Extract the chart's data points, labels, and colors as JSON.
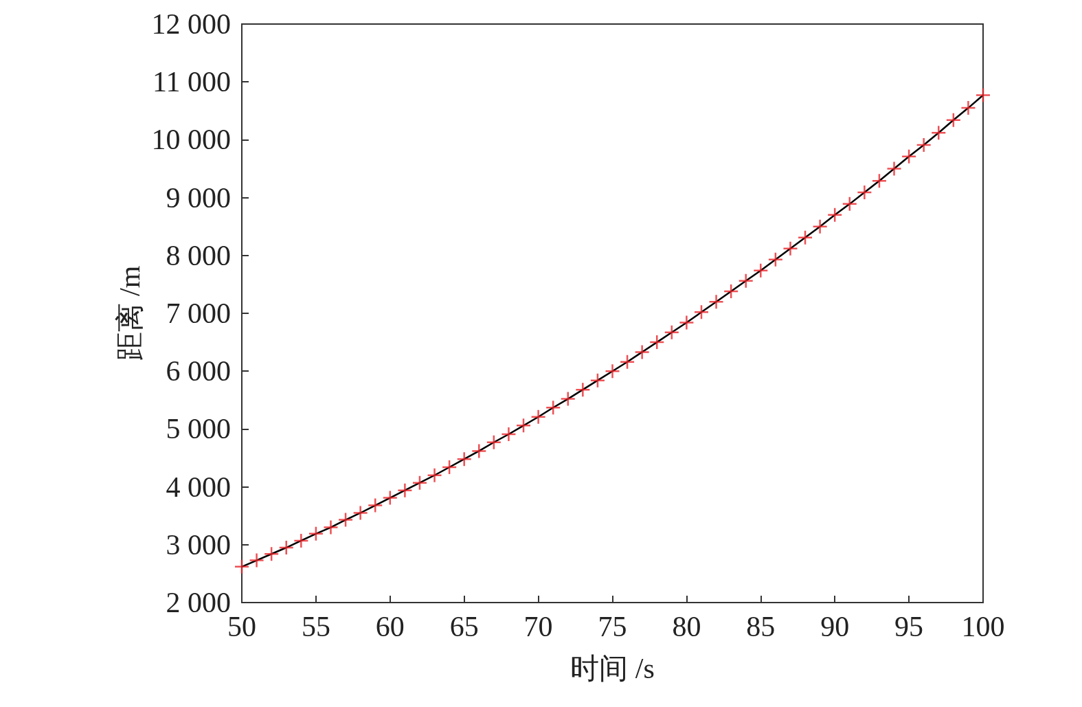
{
  "chart_data": {
    "type": "line",
    "xlabel": "时间 /s",
    "ylabel": "距离 /m",
    "x": [
      50,
      51,
      52,
      53,
      54,
      55,
      56,
      57,
      58,
      59,
      60,
      61,
      62,
      63,
      64,
      65,
      66,
      67,
      68,
      69,
      70,
      71,
      72,
      73,
      74,
      75,
      76,
      77,
      78,
      79,
      80,
      81,
      82,
      83,
      84,
      85,
      86,
      87,
      88,
      89,
      90,
      91,
      92,
      93,
      94,
      95,
      96,
      97,
      98,
      99,
      100
    ],
    "series": [
      {
        "color": "#000000",
        "marker": "none",
        "values": [
          2620,
          2730,
          2840,
          2950,
          3070,
          3190,
          3300,
          3430,
          3550,
          3680,
          3810,
          3940,
          4070,
          4200,
          4340,
          4480,
          4620,
          4770,
          4910,
          5060,
          5210,
          5370,
          5520,
          5680,
          5840,
          6000,
          6160,
          6330,
          6500,
          6670,
          6840,
          7020,
          7200,
          7380,
          7560,
          7740,
          7930,
          8120,
          8310,
          8500,
          8700,
          8890,
          9090,
          9290,
          9500,
          9710,
          9910,
          10120,
          10340,
          10550,
          10770
        ]
      },
      {
        "type": "scatter",
        "color": "#e8262b",
        "marker": "cross",
        "values": [
          2620,
          2730,
          2840,
          2950,
          3070,
          3190,
          3300,
          3430,
          3550,
          3680,
          3810,
          3940,
          4070,
          4200,
          4340,
          4480,
          4620,
          4770,
          4910,
          5060,
          5210,
          5370,
          5520,
          5680,
          5840,
          6000,
          6160,
          6330,
          6500,
          6670,
          6840,
          7020,
          7200,
          7380,
          7560,
          7740,
          7930,
          8120,
          8310,
          8500,
          8700,
          8890,
          9090,
          9290,
          9500,
          9710,
          9910,
          10120,
          10340,
          10550,
          10770
        ]
      }
    ],
    "xlim": [
      50,
      100
    ],
    "xticks": [
      50,
      55,
      60,
      65,
      70,
      75,
      80,
      85,
      90,
      95,
      100
    ],
    "ylim": [
      2000,
      12000
    ],
    "yticks": [
      {
        "value": 2000,
        "label": "2 000"
      },
      {
        "value": 3000,
        "label": "3 000"
      },
      {
        "value": 4000,
        "label": "4 000"
      },
      {
        "value": 5000,
        "label": "5 000"
      },
      {
        "value": 6000,
        "label": "6 000"
      },
      {
        "value": 7000,
        "label": "7 000"
      },
      {
        "value": 8000,
        "label": "8 000"
      },
      {
        "value": 9000,
        "label": "9 000"
      },
      {
        "value": 10000,
        "label": "10 000"
      },
      {
        "value": 11000,
        "label": "11 000"
      },
      {
        "value": 12000,
        "label": "12 000"
      }
    ],
    "grid": false
  }
}
